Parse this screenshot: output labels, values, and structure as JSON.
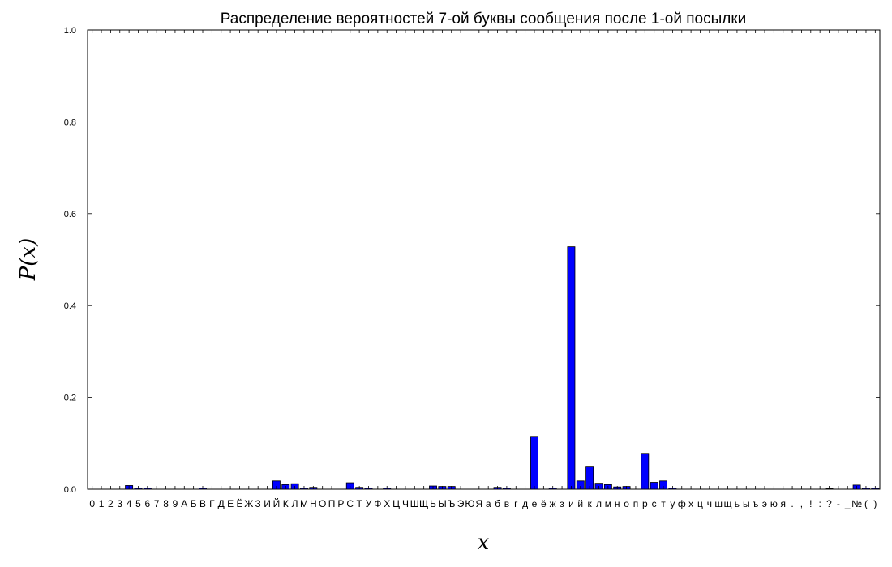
{
  "chart_data": {
    "type": "bar",
    "title": "Распределение вероятностей 7-ой буквы сообщения после 1-ой посылки",
    "xlabel": "x",
    "ylabel": "P(x)",
    "ylim": [
      0,
      1.0
    ],
    "yticks": [
      "0.0",
      "0.2",
      "0.4",
      "0.6",
      "0.8",
      "1.0"
    ],
    "categories": [
      "0",
      "1",
      "2",
      "3",
      "4",
      "5",
      "6",
      "7",
      "8",
      "9",
      "А",
      "Б",
      "В",
      "Г",
      "Д",
      "Е",
      "Ё",
      "Ж",
      "З",
      "И",
      "Й",
      "К",
      "Л",
      "М",
      "Н",
      "О",
      "П",
      "Р",
      "С",
      "Т",
      "У",
      "Ф",
      "Х",
      "Ц",
      "Ч",
      "Ш",
      "Щ",
      "Ь",
      "Ы",
      "Ъ",
      "Э",
      "Ю",
      "Я",
      "а",
      "б",
      "в",
      "г",
      "д",
      "е",
      "ё",
      "ж",
      "з",
      "и",
      "й",
      "к",
      "л",
      "м",
      "н",
      "о",
      "п",
      "р",
      "с",
      "т",
      "у",
      "ф",
      "х",
      "ц",
      "ч",
      "ш",
      "щ",
      "ь",
      "ы",
      "ъ",
      "э",
      "ю",
      "я",
      ".",
      ",",
      "!",
      ":",
      "?",
      "-",
      "_",
      "№",
      "(",
      ")"
    ],
    "values": [
      0,
      0,
      0,
      0,
      0.008,
      0.002,
      0.002,
      0,
      0,
      0,
      0,
      0,
      0.002,
      0,
      0,
      0,
      0,
      0,
      0,
      0,
      0.018,
      0.01,
      0.012,
      0.002,
      0.004,
      0,
      0,
      0,
      0.014,
      0.004,
      0.002,
      0,
      0.002,
      0,
      0,
      0,
      0,
      0.007,
      0.006,
      0.006,
      0,
      0,
      0,
      0,
      0.004,
      0.002,
      0,
      0,
      0.115,
      0,
      0.002,
      0,
      0.528,
      0.018,
      0.05,
      0.013,
      0.01,
      0.005,
      0.006,
      0,
      0.078,
      0.015,
      0.018,
      0.002,
      0,
      0,
      0,
      0,
      0,
      0,
      0,
      0,
      0,
      0,
      0,
      0,
      0,
      0,
      0,
      0,
      0.001,
      0,
      0,
      0.009,
      0.002,
      0.002
    ],
    "grid": false,
    "legend": "none",
    "colors": {
      "bar": "#0000ff",
      "edge": "#000000"
    }
  }
}
